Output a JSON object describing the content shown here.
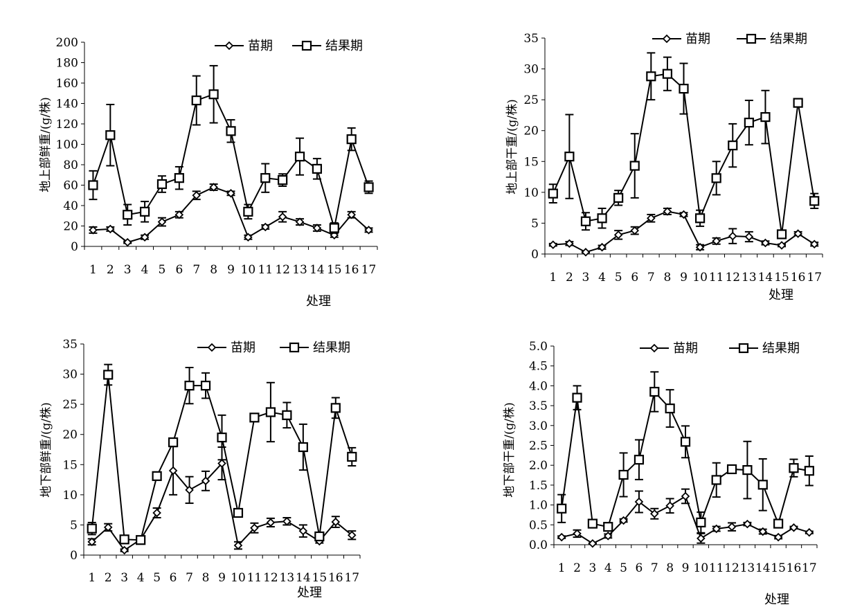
{
  "chart_data": [
    {
      "type": "line",
      "ylabel": "地上部鲜重/(g/株)",
      "xlabel": "处理",
      "ylim": [
        0,
        200
      ],
      "yticks": [
        0,
        20,
        40,
        60,
        80,
        100,
        120,
        140,
        160,
        180,
        200
      ],
      "categories": [
        "1",
        "2",
        "3",
        "4",
        "5",
        "6",
        "7",
        "8",
        "9",
        "10",
        "11",
        "12",
        "13",
        "14",
        "15",
        "16",
        "17"
      ],
      "legend": "top-right",
      "series": [
        {
          "name": "苗期",
          "marker": "diamond",
          "values": [
            16,
            17,
            4,
            9,
            24,
            31,
            50,
            58,
            52,
            9,
            19,
            29,
            24,
            18,
            11,
            31,
            16
          ],
          "errors": [
            3,
            2,
            1,
            2,
            4,
            3,
            4,
            3,
            2,
            2,
            2,
            5,
            3,
            3,
            2,
            3,
            2
          ]
        },
        {
          "name": "结果期",
          "marker": "square",
          "values": [
            60,
            109,
            31,
            34,
            61,
            67,
            143,
            149,
            113,
            34,
            67,
            65,
            88,
            76,
            18,
            105,
            58
          ],
          "errors": [
            14,
            30,
            10,
            10,
            8,
            11,
            24,
            28,
            11,
            7,
            14,
            6,
            18,
            10,
            5,
            11,
            6
          ]
        }
      ]
    },
    {
      "type": "line",
      "ylabel": "地上部干重/(g/株)",
      "xlabel": "处理",
      "ylim": [
        0,
        35
      ],
      "yticks": [
        0,
        5,
        10,
        15,
        20,
        25,
        30,
        35
      ],
      "categories": [
        "1",
        "2",
        "3",
        "4",
        "5",
        "6",
        "7",
        "8",
        "9",
        "10",
        "11",
        "12",
        "13",
        "14",
        "15",
        "16",
        "17"
      ],
      "legend": "top-right",
      "series": [
        {
          "name": "苗期",
          "marker": "diamond",
          "values": [
            1.5,
            1.7,
            0.3,
            1.1,
            3.1,
            3.8,
            5.8,
            6.9,
            6.4,
            1.1,
            2.1,
            2.9,
            2.8,
            1.8,
            1.4,
            3.3,
            1.6
          ],
          "errors": [
            0.2,
            0.3,
            0.1,
            0.3,
            0.7,
            0.6,
            0.6,
            0.5,
            0.3,
            0.4,
            0.5,
            1.2,
            0.8,
            0.3,
            0.2,
            0.3,
            0.3
          ]
        },
        {
          "name": "结果期",
          "marker": "square",
          "values": [
            9.8,
            15.8,
            5.3,
            5.8,
            9.1,
            14.3,
            28.8,
            29.2,
            26.8,
            5.8,
            12.3,
            17.6,
            21.3,
            22.2,
            3.2,
            24.5,
            8.6
          ],
          "errors": [
            1.5,
            6.8,
            1.4,
            1.6,
            1.2,
            5.2,
            3.8,
            2.7,
            4.1,
            1.3,
            2.7,
            3.5,
            3.6,
            4.3,
            0.6,
            0.4,
            1.2
          ]
        }
      ]
    },
    {
      "type": "line",
      "ylabel": "地下部鲜重/(g/株)",
      "xlabel": "处理",
      "ylim": [
        0,
        35
      ],
      "yticks": [
        0,
        5,
        10,
        15,
        20,
        25,
        30,
        35
      ],
      "categories": [
        "1",
        "2",
        "3",
        "4",
        "5",
        "6",
        "7",
        "8",
        "9",
        "10",
        "11",
        "12",
        "13",
        "14",
        "15",
        "16",
        "17"
      ],
      "legend": "top-right",
      "series": [
        {
          "name": "苗期",
          "marker": "diamond",
          "values": [
            2.2,
            4.6,
            0.8,
            2.6,
            7.0,
            14.0,
            10.8,
            12.3,
            15.2,
            1.6,
            4.5,
            5.4,
            5.6,
            4.0,
            2.3,
            5.5,
            3.3
          ],
          "errors": [
            0.5,
            0.6,
            0.2,
            0.3,
            0.8,
            4.0,
            2.2,
            1.6,
            2.7,
            0.6,
            0.8,
            0.7,
            0.6,
            1.0,
            0.3,
            0.9,
            0.7
          ]
        },
        {
          "name": "结果期",
          "marker": "square",
          "values": [
            4.4,
            29.9,
            2.6,
            2.5,
            13.1,
            18.7,
            28.1,
            28.1,
            19.5,
            7.0,
            22.8,
            23.7,
            23.2,
            17.9,
            3.1,
            24.4,
            16.3
          ],
          "errors": [
            1.0,
            1.7,
            0.2,
            0.2,
            0.6,
            0.6,
            3.0,
            2.1,
            3.7,
            0.4,
            0.5,
            4.9,
            2.1,
            3.8,
            0.5,
            1.7,
            1.5
          ]
        }
      ]
    },
    {
      "type": "line",
      "ylabel": "地下部干重/(g/株)",
      "xlabel": "处理",
      "ylim": [
        0,
        5.0
      ],
      "yticks": [
        0.0,
        0.5,
        1.0,
        1.5,
        2.0,
        2.5,
        3.0,
        3.5,
        4.0,
        4.5,
        5.0
      ],
      "categories": [
        "1",
        "2",
        "3",
        "4",
        "5",
        "6",
        "7",
        "8",
        "9",
        "10",
        "11",
        "12",
        "13",
        "14",
        "15",
        "16",
        "17"
      ],
      "legend": "top-right",
      "series": [
        {
          "name": "苗期",
          "marker": "diamond",
          "values": [
            0.19,
            0.28,
            0.03,
            0.22,
            0.61,
            1.08,
            0.78,
            0.98,
            1.22,
            0.16,
            0.4,
            0.45,
            0.52,
            0.33,
            0.19,
            0.43,
            0.31
          ],
          "errors": [
            0.03,
            0.09,
            0.01,
            0.05,
            0.04,
            0.27,
            0.13,
            0.18,
            0.18,
            0.12,
            0.06,
            0.1,
            0.04,
            0.06,
            0.04,
            0.03,
            0.03
          ]
        },
        {
          "name": "结果期",
          "marker": "square",
          "values": [
            0.91,
            3.7,
            0.53,
            0.45,
            1.76,
            2.14,
            3.85,
            3.43,
            2.59,
            0.56,
            1.63,
            1.9,
            1.88,
            1.51,
            0.53,
            1.93,
            1.86
          ],
          "errors": [
            0.35,
            0.3,
            0.05,
            0.03,
            0.55,
            0.5,
            0.5,
            0.47,
            0.4,
            0.26,
            0.43,
            0.05,
            0.72,
            0.65,
            0.05,
            0.22,
            0.37
          ]
        }
      ]
    }
  ]
}
